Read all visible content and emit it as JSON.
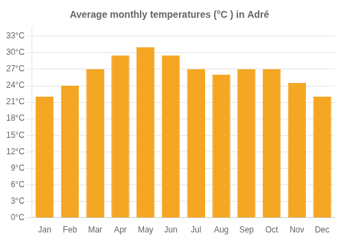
{
  "chart_data": {
    "type": "bar",
    "title": "Average monthly temperatures (°C ) in Adré",
    "categories": [
      "Jan",
      "Feb",
      "Mar",
      "Apr",
      "May",
      "Jun",
      "Jul",
      "Aug",
      "Sep",
      "Oct",
      "Nov",
      "Dec"
    ],
    "values": [
      22,
      24,
      27,
      29.5,
      31,
      29.5,
      27,
      26,
      27,
      27,
      24.5,
      22
    ],
    "color": "#F5A623",
    "ylim": [
      0,
      34.5
    ],
    "yticks": [
      {
        "value": 0,
        "label": "0°C"
      },
      {
        "value": 3,
        "label": "3°C"
      },
      {
        "value": 6,
        "label": "6°C"
      },
      {
        "value": 9,
        "label": "9°C"
      },
      {
        "value": 12,
        "label": "12°C"
      },
      {
        "value": 15,
        "label": "15°C"
      },
      {
        "value": 18,
        "label": "18°C"
      },
      {
        "value": 21,
        "label": "21°C"
      },
      {
        "value": 24,
        "label": "24°C"
      },
      {
        "value": 27,
        "label": "27°C"
      },
      {
        "value": 30,
        "label": "30°C"
      },
      {
        "value": 33,
        "label": "33°C"
      }
    ],
    "grid": "y"
  }
}
